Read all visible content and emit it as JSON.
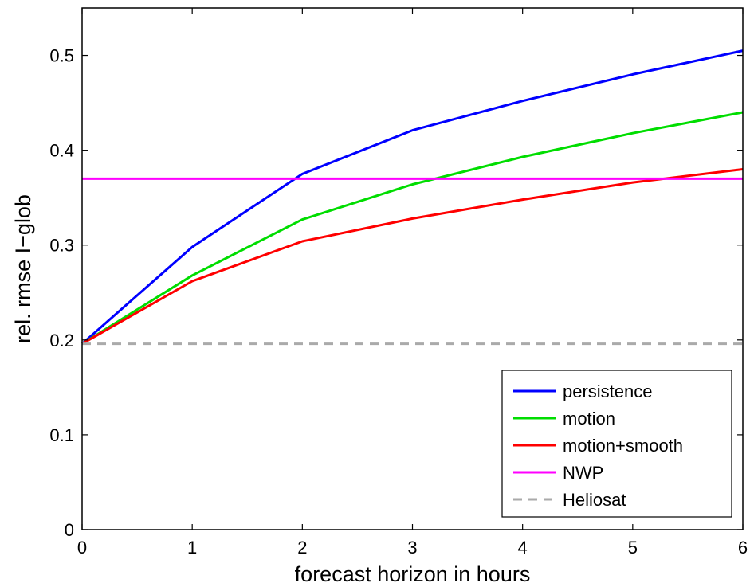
{
  "chart_data": {
    "type": "line",
    "title": "",
    "xlabel": "forecast horizon in hours",
    "ylabel": "rel. rmse I−glob",
    "xlim": [
      0,
      6
    ],
    "ylim": [
      0,
      0.55
    ],
    "xticks": [
      "0",
      "1",
      "2",
      "3",
      "4",
      "5",
      "6"
    ],
    "yticks": [
      "0",
      "0.1",
      "0.2",
      "0.3",
      "0.4",
      "0.5"
    ],
    "legend_position": "bottom-right",
    "grid": false,
    "x": [
      0,
      1,
      2,
      3,
      4,
      5,
      6
    ],
    "series": [
      {
        "name": "persistence",
        "color": "#0000ff",
        "style": "solid",
        "values": [
          0.196,
          0.298,
          0.375,
          0.421,
          0.452,
          0.48,
          0.505
        ]
      },
      {
        "name": "motion",
        "color": "#00dd00",
        "style": "solid",
        "values": [
          0.196,
          0.268,
          0.327,
          0.364,
          0.393,
          0.418,
          0.44
        ]
      },
      {
        "name": "motion+smooth",
        "color": "#ff0000",
        "style": "solid",
        "values": [
          0.196,
          0.262,
          0.304,
          0.328,
          0.348,
          0.366,
          0.38
        ]
      },
      {
        "name": "NWP",
        "color": "#ff00ff",
        "style": "solid",
        "values": [
          0.37,
          0.37,
          0.37,
          0.37,
          0.37,
          0.37,
          0.37
        ]
      },
      {
        "name": "Heliosat",
        "color": "#aaaaaa",
        "style": "dashed",
        "values": [
          0.196,
          0.196,
          0.196,
          0.196,
          0.196,
          0.196,
          0.196
        ]
      }
    ]
  }
}
